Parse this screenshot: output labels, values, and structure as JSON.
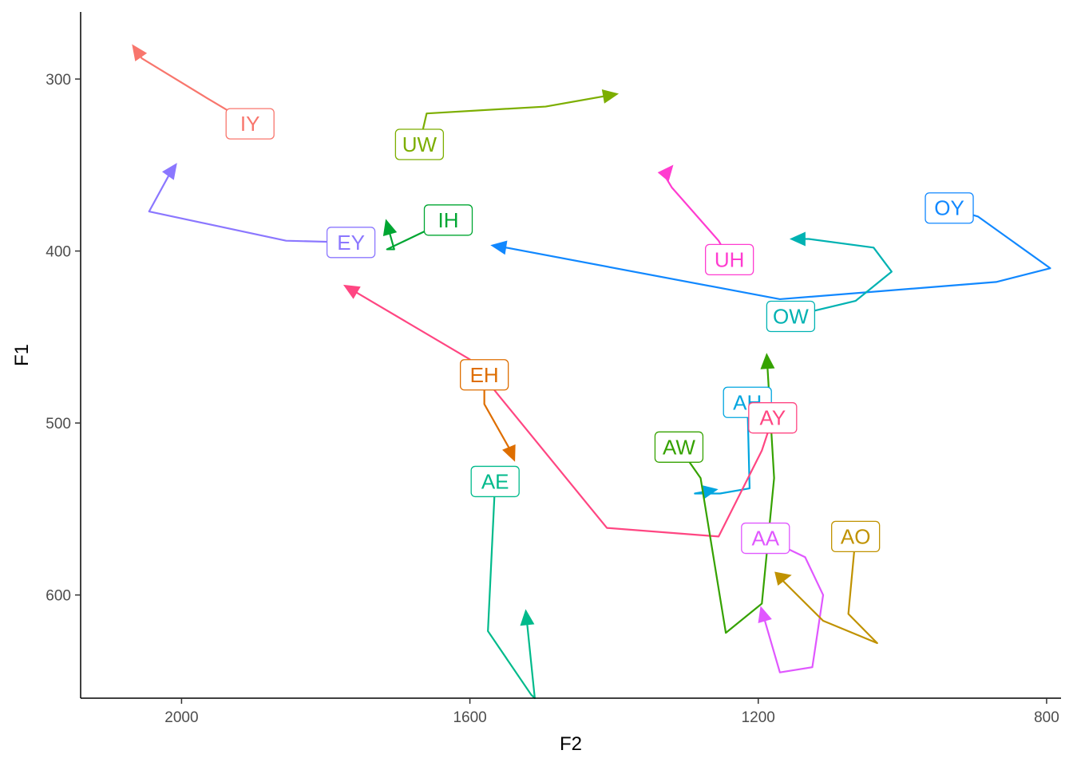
{
  "chart_data": {
    "type": "line",
    "xlabel": "F2",
    "ylabel": "F1",
    "xlim": [
      2140,
      780
    ],
    "ylim": [
      660,
      261
    ],
    "x_reversed": true,
    "y_reversed": true,
    "xticks": [
      2000,
      1600,
      1200,
      800
    ],
    "yticks": [
      300,
      400,
      500,
      600
    ],
    "grid": false,
    "legend": "none",
    "series": [
      {
        "name": "IY",
        "color": "#F8766D",
        "label_at": [
          1905,
          326
        ],
        "points": [
          [
            1905,
            326
          ],
          [
            1965,
            311
          ],
          [
            2055,
            288
          ],
          [
            2065,
            282
          ]
        ]
      },
      {
        "name": "UW",
        "color": "#7CAE00",
        "label_at": [
          1670,
          338
        ],
        "points": [
          [
            1670,
            338
          ],
          [
            1660,
            320
          ],
          [
            1495,
            316
          ],
          [
            1400,
            309
          ]
        ]
      },
      {
        "name": "EY",
        "color": "#8B77FF",
        "label_at": [
          1765,
          395
        ],
        "points": [
          [
            1765,
            395
          ],
          [
            1855,
            394
          ],
          [
            2045,
            377
          ],
          [
            2015,
            354
          ],
          [
            2010,
            351
          ]
        ]
      },
      {
        "name": "IH",
        "color": "#00A632",
        "label_at": [
          1630,
          382
        ],
        "points": [
          [
            1630,
            382
          ],
          [
            1715,
            399
          ],
          [
            1705,
            399
          ],
          [
            1715,
            384
          ]
        ]
      },
      {
        "name": "UH",
        "color": "#FF3CD0",
        "label_at": [
          1240,
          405
        ],
        "points": [
          [
            1240,
            405
          ],
          [
            1255,
            394
          ],
          [
            1320,
            363
          ],
          [
            1330,
            356
          ],
          [
            1322,
            352
          ]
        ]
      },
      {
        "name": "OY",
        "color": "#1188FF",
        "label_at": [
          935,
          375
        ],
        "points": [
          [
            935,
            375
          ],
          [
            895,
            380
          ],
          [
            795,
            410
          ],
          [
            870,
            418
          ],
          [
            1170,
            428
          ],
          [
            1550,
            398
          ],
          [
            1565,
            397
          ]
        ]
      },
      {
        "name": "OW",
        "color": "#00B2B2",
        "label_at": [
          1155,
          438
        ],
        "points": [
          [
            1155,
            438
          ],
          [
            1065,
            429
          ],
          [
            1015,
            412
          ],
          [
            1040,
            398
          ],
          [
            1130,
            393
          ],
          [
            1150,
            393
          ]
        ]
      },
      {
        "name": "EH",
        "color": "#DE6E00",
        "label_at": [
          1580,
          472
        ],
        "points": [
          [
            1580,
            472
          ],
          [
            1580,
            489
          ],
          [
            1545,
            515
          ],
          [
            1540,
            520
          ]
        ]
      },
      {
        "name": "AH",
        "color": "#00A5DF",
        "label_at": [
          1215,
          488
        ],
        "points": [
          [
            1215,
            488
          ],
          [
            1212,
            538
          ],
          [
            1253,
            541
          ],
          [
            1288,
            541
          ],
          [
            1262,
            539
          ]
        ]
      },
      {
        "name": "AY",
        "color": "#FF4682",
        "label_at": [
          1180,
          497
        ],
        "points": [
          [
            1180,
            497
          ],
          [
            1195,
            516
          ],
          [
            1255,
            566
          ],
          [
            1410,
            561
          ],
          [
            1560,
            484
          ],
          [
            1600,
            463
          ],
          [
            1770,
            421
          ]
        ]
      },
      {
        "name": "AW",
        "color": "#35A200",
        "label_at": [
          1310,
          514
        ],
        "points": [
          [
            1310,
            514
          ],
          [
            1280,
            532
          ],
          [
            1245,
            622
          ],
          [
            1195,
            605
          ],
          [
            1178,
            532
          ],
          [
            1188,
            462
          ]
        ]
      },
      {
        "name": "AE",
        "color": "#00BA8B",
        "label_at": [
          1565,
          534
        ],
        "points": [
          [
            1565,
            534
          ],
          [
            1575,
            621
          ],
          [
            1515,
            658
          ],
          [
            1510,
            660
          ],
          [
            1522,
            611
          ]
        ]
      },
      {
        "name": "AA",
        "color": "#E057FF",
        "label_at": [
          1190,
          567
        ],
        "points": [
          [
            1190,
            567
          ],
          [
            1135,
            578
          ],
          [
            1110,
            600
          ],
          [
            1125,
            642
          ],
          [
            1170,
            645
          ],
          [
            1195,
            609
          ]
        ]
      },
      {
        "name": "AO",
        "color": "#C09200",
        "label_at": [
          1065,
          566
        ],
        "points": [
          [
            1065,
            566
          ],
          [
            1075,
            611
          ],
          [
            1035,
            628
          ],
          [
            1110,
            615
          ],
          [
            1170,
            590
          ],
          [
            1160,
            589
          ]
        ]
      }
    ]
  }
}
